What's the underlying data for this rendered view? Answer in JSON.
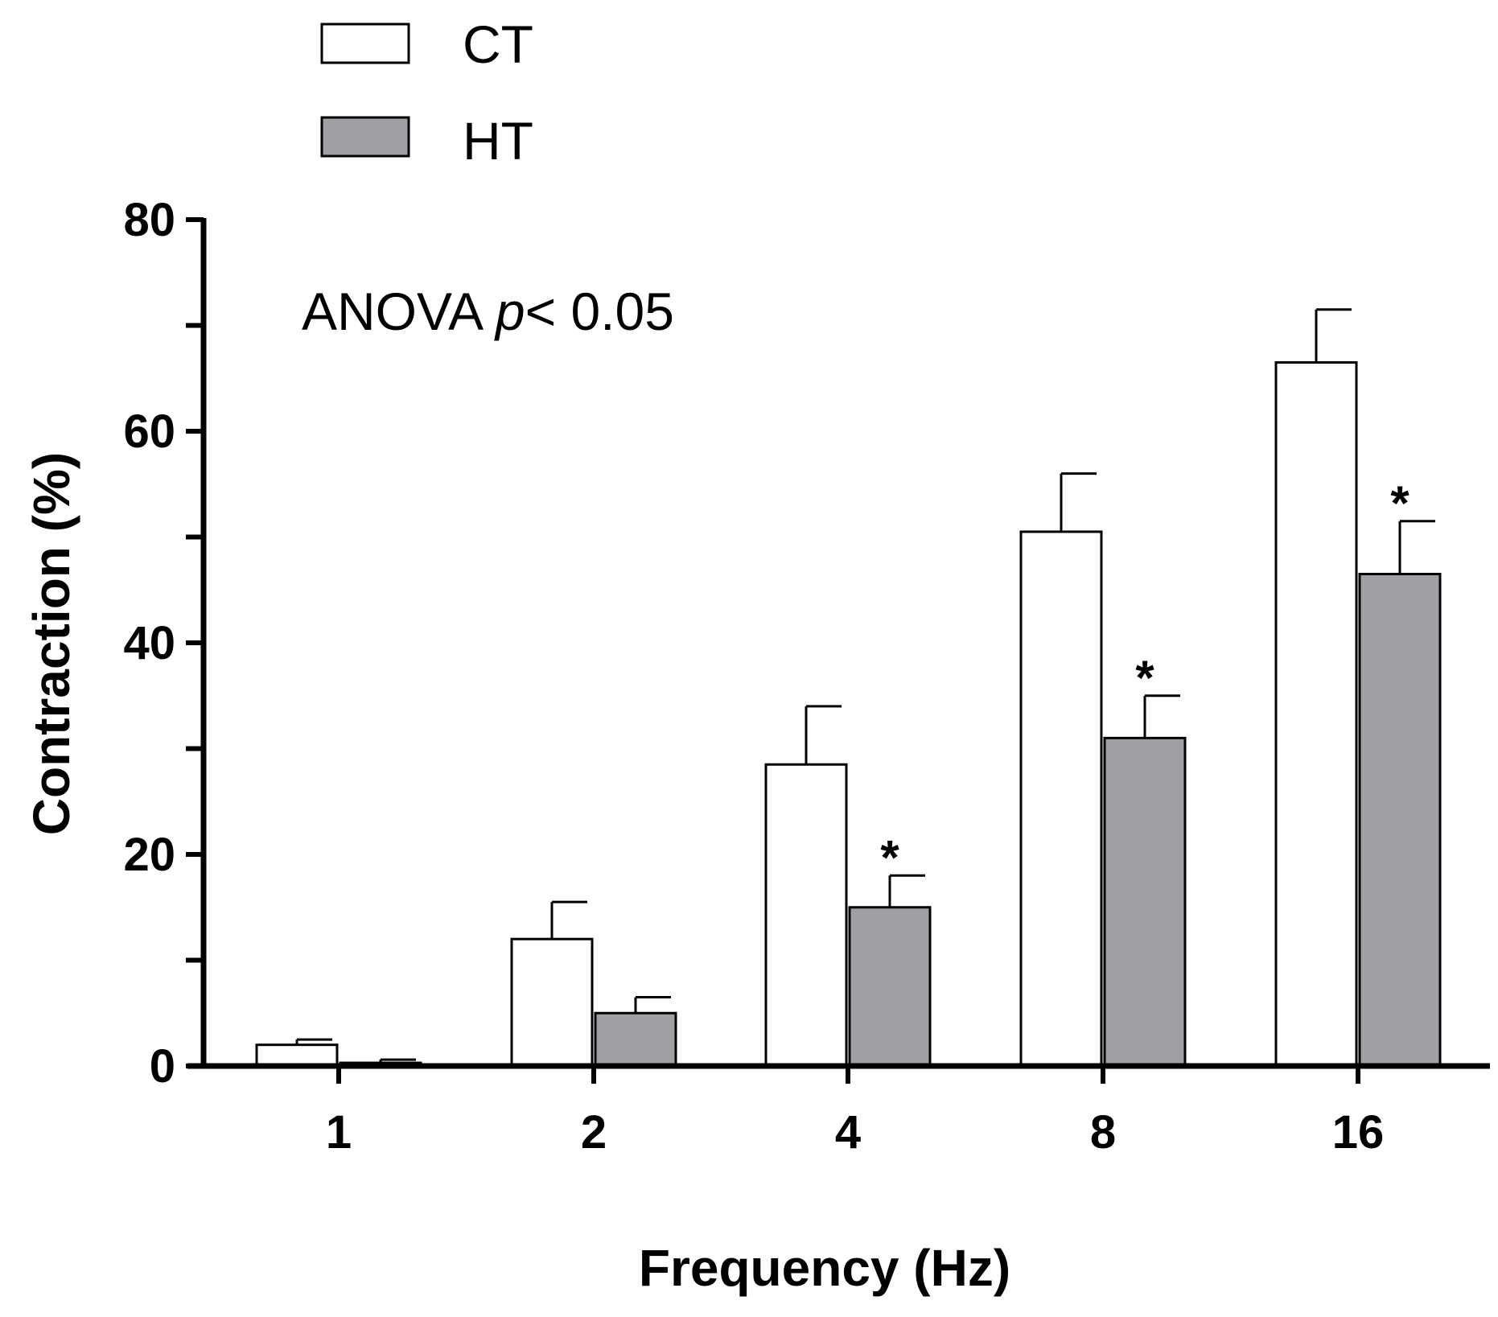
{
  "chart_data": {
    "type": "bar",
    "categories": [
      "1",
      "2",
      "4",
      "8",
      "16"
    ],
    "series": [
      {
        "name": "CT",
        "color": "#ffffff",
        "values": [
          2.0,
          12.0,
          28.5,
          50.5,
          66.5
        ],
        "errors": [
          0.5,
          3.5,
          5.5,
          5.5,
          5.0
        ],
        "significant": [
          false,
          false,
          false,
          false,
          false
        ]
      },
      {
        "name": "HT",
        "color": "#a0a0a4",
        "values": [
          0.3,
          5.0,
          15.0,
          31.0,
          46.5
        ],
        "errors": [
          0.3,
          1.5,
          3.0,
          4.0,
          5.0
        ],
        "significant": [
          false,
          false,
          true,
          true,
          true
        ]
      }
    ],
    "xlabel": "Frequency (Hz)",
    "ylabel": "Contraction (%)",
    "ylim": [
      0,
      80
    ],
    "yticks": [
      "0",
      "20",
      "40",
      "60",
      "80"
    ],
    "annotation": {
      "prefix": "ANOVA ",
      "italic": "p",
      "suffix": "< 0.05"
    },
    "significance_marker": "*",
    "legend_position": "top-left"
  }
}
